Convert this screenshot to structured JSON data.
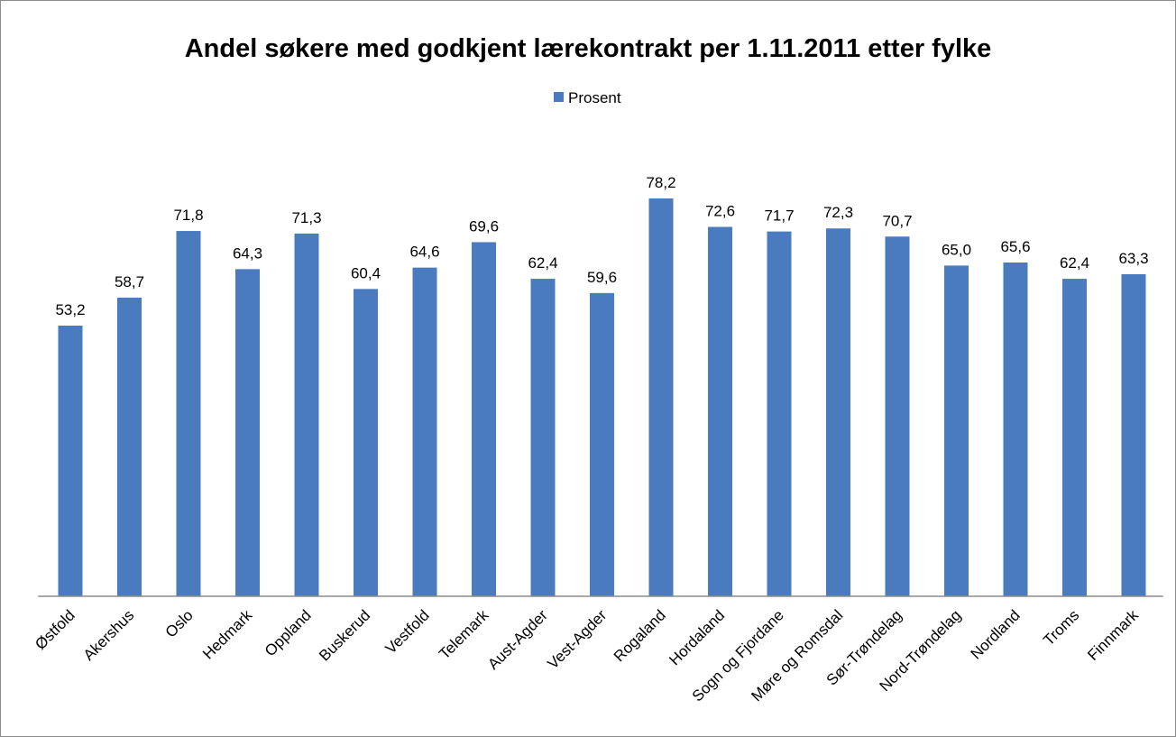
{
  "chart_data": {
    "type": "bar",
    "title": "Andel søkere med godkjent lærekontrakt per 1.11.2011 etter fylke",
    "categories": [
      "Østfold",
      "Akershus",
      "Oslo",
      "Hedmark",
      "Oppland",
      "Buskerud",
      "Vestfold",
      "Telemark",
      "Aust-Agder",
      "Vest-Agder",
      "Rogaland",
      "Hordaland",
      "Sogn og Fjordane",
      "Møre og Romsdal",
      "Sør-Trøndelag",
      "Nord-Trøndelag",
      "Nordland",
      "Troms",
      "Finnmark"
    ],
    "series": [
      {
        "name": "Prosent",
        "color": "#4a7bbf",
        "values": [
          53.2,
          58.7,
          71.8,
          64.3,
          71.3,
          60.4,
          64.6,
          69.6,
          62.4,
          59.6,
          78.2,
          72.6,
          71.7,
          72.3,
          70.7,
          65.0,
          65.6,
          62.4,
          63.3
        ],
        "value_labels": [
          "53,2",
          "58,7",
          "71,8",
          "64,3",
          "71,3",
          "60,4",
          "64,6",
          "69,6",
          "62,4",
          "59,6",
          "78,2",
          "72,6",
          "71,7",
          "72,3",
          "70,7",
          "65,0",
          "65,6",
          "62,4",
          "63,3"
        ]
      }
    ],
    "ylim": [
      0,
      90
    ],
    "legend": "top"
  }
}
